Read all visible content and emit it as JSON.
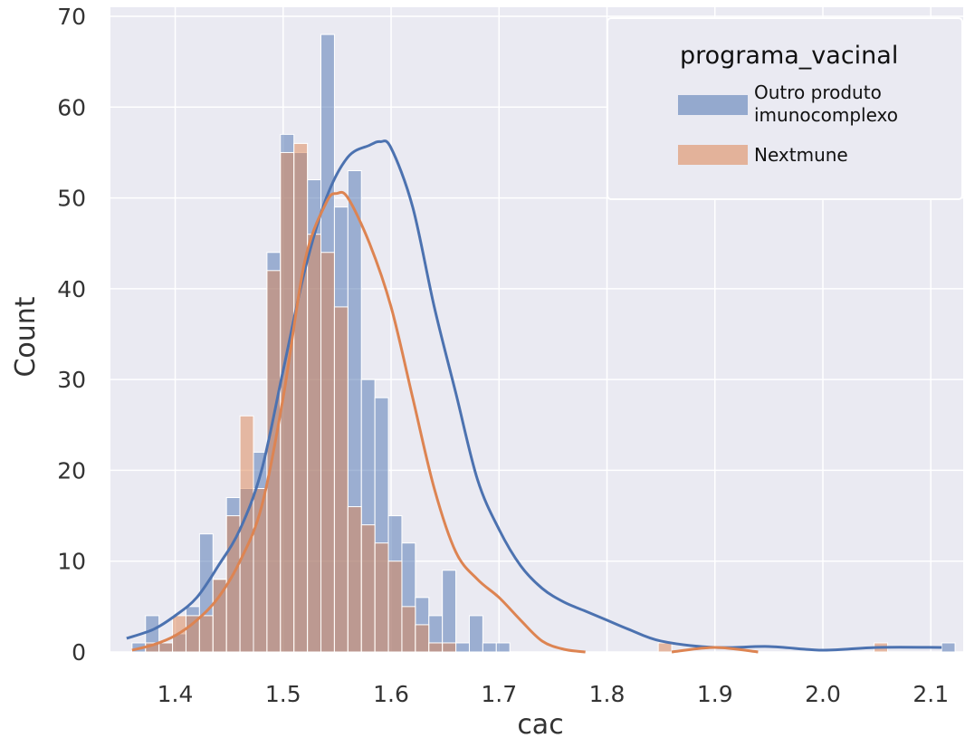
{
  "chart_data": {
    "type": "histogram",
    "title": "",
    "xlabel": "cac",
    "ylabel": "Count",
    "xlim": [
      1.34,
      2.13
    ],
    "ylim": [
      0,
      71
    ],
    "xticks": [
      1.4,
      1.5,
      1.6,
      1.7,
      1.8,
      1.9,
      2.0,
      2.1
    ],
    "yticks": [
      0,
      10,
      20,
      30,
      40,
      50,
      60,
      70
    ],
    "xtick_labels": [
      "1.4",
      "1.5",
      "1.6",
      "1.7",
      "1.8",
      "1.9",
      "2.0",
      "2.1"
    ],
    "ytick_labels": [
      "0",
      "10",
      "20",
      "30",
      "40",
      "50",
      "60",
      "70"
    ],
    "grid": true,
    "background": "#eaeaf2",
    "bin_start": 1.36,
    "bin_width": 0.0125,
    "legend": {
      "title": "programa_vacinal",
      "placement": "upper right"
    },
    "series": [
      {
        "name": "Outro produto\nimunocomplexo",
        "label_lines": [
          "Outro produto",
          "imunocomplexo"
        ],
        "color": "#4c72b0",
        "counts": [
          1,
          4,
          1,
          2,
          5,
          13,
          8,
          17,
          18,
          22,
          44,
          57,
          55,
          52,
          68,
          49,
          53,
          30,
          28,
          15,
          12,
          6,
          4,
          9,
          1,
          4,
          1,
          1,
          0,
          0,
          0,
          0,
          0,
          0,
          0,
          0,
          0,
          0,
          0,
          0,
          0,
          0,
          0,
          0,
          0,
          0,
          0,
          0,
          0,
          0,
          0,
          0,
          0,
          0,
          0,
          0,
          0,
          0,
          0,
          0,
          1
        ],
        "kde": {
          "x": [
            1.355,
            1.38,
            1.4,
            1.42,
            1.44,
            1.46,
            1.48,
            1.5,
            1.52,
            1.54,
            1.56,
            1.58,
            1.59,
            1.6,
            1.62,
            1.64,
            1.66,
            1.68,
            1.7,
            1.72,
            1.74,
            1.76,
            1.78,
            1.8,
            1.82,
            1.85,
            1.9,
            1.95,
            2.0,
            2.05,
            2.11
          ],
          "y": [
            1.5,
            2.5,
            4,
            6,
            9.5,
            13.5,
            20,
            31,
            42,
            50,
            54.5,
            55.8,
            56.2,
            55.5,
            49,
            38,
            28.5,
            19,
            13.5,
            9.5,
            7,
            5.5,
            4.5,
            3.5,
            2.5,
            1.2,
            0.5,
            0.6,
            0.2,
            0.5,
            0.5
          ]
        }
      },
      {
        "name": "Nextmune",
        "label_lines": [
          "Nextmune"
        ],
        "color": "#dd8452",
        "counts": [
          0,
          1,
          1,
          4,
          4,
          4,
          8,
          15,
          26,
          18,
          42,
          55,
          56,
          46,
          44,
          38,
          16,
          14,
          12,
          10,
          5,
          3,
          1,
          1,
          0,
          0,
          0,
          0,
          0,
          0,
          0,
          0,
          0,
          0,
          0,
          0,
          0,
          0,
          0,
          1,
          0,
          0,
          0,
          0,
          0,
          0,
          0,
          0,
          0,
          0,
          0,
          0,
          0,
          0,
          0,
          1,
          0,
          0,
          0,
          0,
          0
        ],
        "kde": {
          "x": [
            1.36,
            1.38,
            1.4,
            1.42,
            1.44,
            1.46,
            1.48,
            1.5,
            1.52,
            1.54,
            1.55,
            1.56,
            1.58,
            1.6,
            1.62,
            1.64,
            1.66,
            1.68,
            1.7,
            1.72,
            1.74,
            1.76,
            1.78
          ],
          "y": [
            0.2,
            0.8,
            1.8,
            3.5,
            6,
            10,
            16,
            28,
            43,
            49.5,
            50.5,
            50,
            45,
            38,
            28,
            18,
            11,
            8,
            6,
            3.5,
            1.2,
            0.3,
            0
          ],
          "tail_x": [
            1.86,
            1.9,
            1.94
          ],
          "tail_y": [
            0,
            0.5,
            0
          ]
        }
      }
    ]
  }
}
